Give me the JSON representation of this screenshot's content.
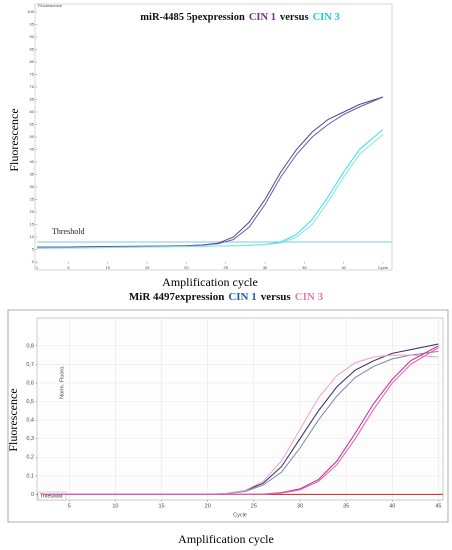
{
  "chart_data": [
    {
      "type": "line",
      "title": [
        {
          "text": "miR-4485 5pexpression",
          "color": "#111111"
        },
        {
          "text": "CIN 1",
          "color": "#7a2a8c"
        },
        {
          "text": "versus",
          "color": "#111111"
        },
        {
          "text": "CIN 3",
          "color": "#22c8e0"
        }
      ],
      "y_label": "Fluorescence",
      "x_label": "Amplification cycle",
      "y_inner_label": "Fluorescence",
      "x": [
        1,
        5,
        10,
        15,
        20,
        22,
        24,
        26,
        28,
        30,
        32,
        34,
        36,
        38,
        40,
        42,
        45
      ],
      "series": [
        {
          "color": "#5b3f8f",
          "values": [
            6,
            6,
            6.2,
            6.3,
            6.5,
            6.8,
            7.5,
            10,
            16,
            25,
            36,
            45,
            52,
            57,
            60,
            63,
            66
          ]
        },
        {
          "color": "#6e5aa8",
          "values": [
            6,
            6,
            6.2,
            6.3,
            6.5,
            6.8,
            7.3,
            9,
            14,
            23,
            34,
            43,
            50,
            55,
            59,
            62,
            66
          ]
        },
        {
          "color": "#3fdede",
          "values": [
            5.5,
            5.6,
            5.8,
            6,
            6.2,
            6.3,
            6.4,
            6.5,
            6.7,
            7,
            8,
            11,
            17,
            26,
            36,
            45,
            53
          ]
        },
        {
          "color": "#7ae8ea",
          "values": [
            5.5,
            5.6,
            5.8,
            6,
            6.2,
            6.3,
            6.4,
            6.5,
            6.6,
            6.9,
            7.6,
            10,
            15,
            24,
            34,
            43,
            51
          ]
        }
      ],
      "threshold": 8,
      "threshold_label": "Threshold",
      "threshold_color": "#7ec8e3",
      "xlim": [
        1,
        45
      ],
      "ylim": [
        0,
        100
      ],
      "xticks": [
        1,
        5,
        10,
        15,
        20,
        25,
        30,
        35,
        40,
        {
          "value": 45,
          "label": "Cycle"
        }
      ],
      "yticks": [
        0,
        5,
        10,
        15,
        20,
        25,
        30,
        35,
        40,
        45,
        50,
        55,
        60,
        65,
        70,
        75,
        80,
        85,
        90,
        95,
        100
      ],
      "grid": false
    },
    {
      "type": "line",
      "title": [
        {
          "text": "MiR 4497expression",
          "color": "#111111"
        },
        {
          "text": "CIN 1",
          "color": "#1a5fa8"
        },
        {
          "text": "versus",
          "color": "#111111"
        },
        {
          "text": "CIN 3",
          "color": "#e67aa8"
        }
      ],
      "y_label": "Fluorescence",
      "x_label": "Amplification cycle",
      "y_inner_label": "Norm. Fluoro.",
      "x_inner_label": "Cycle",
      "x": [
        2,
        5,
        10,
        15,
        20,
        22,
        24,
        26,
        28,
        30,
        32,
        34,
        36,
        38,
        40,
        42,
        45
      ],
      "series": [
        {
          "color": "#2a2a6a",
          "values": [
            0,
            0,
            0,
            0,
            0,
            0.005,
            0.02,
            0.06,
            0.15,
            0.3,
            0.45,
            0.58,
            0.67,
            0.72,
            0.76,
            0.78,
            0.81
          ]
        },
        {
          "color": "#7a8aa0",
          "values": [
            0,
            0,
            0,
            0,
            0,
            0.004,
            0.015,
            0.05,
            0.12,
            0.25,
            0.4,
            0.53,
            0.63,
            0.69,
            0.73,
            0.75,
            0.77
          ]
        },
        {
          "color": "#f0a0c8",
          "values": [
            0,
            0,
            0,
            0,
            0,
            0.005,
            0.02,
            0.07,
            0.18,
            0.35,
            0.52,
            0.64,
            0.71,
            0.74,
            0.75,
            0.75,
            0.74
          ]
        },
        {
          "color": "#d0208a",
          "values": [
            0,
            0,
            0,
            0,
            0,
            0,
            0,
            0.002,
            0.01,
            0.03,
            0.08,
            0.18,
            0.33,
            0.49,
            0.62,
            0.72,
            0.8
          ]
        },
        {
          "color": "#e060b0",
          "values": [
            0,
            0,
            0,
            0,
            0,
            0,
            0,
            0.002,
            0.007,
            0.025,
            0.07,
            0.16,
            0.3,
            0.46,
            0.6,
            0.7,
            0.79
          ]
        }
      ],
      "threshold": 0,
      "threshold_label": "Threshold",
      "threshold_color": "#d02020",
      "xlim": [
        1.5,
        45.5
      ],
      "ylim": [
        -0.03,
        0.95
      ],
      "xticks": [
        5,
        10,
        15,
        20,
        25,
        30,
        35,
        40,
        45
      ],
      "yticks": [
        0,
        {
          "value": 0.1,
          "label": "0,1"
        },
        {
          "value": 0.2,
          "label": "0,2"
        },
        {
          "value": 0.3,
          "label": "0,3"
        },
        {
          "value": 0.4,
          "label": "0,4"
        },
        {
          "value": 0.5,
          "label": "0,5"
        },
        {
          "value": 0.6,
          "label": "0,6"
        },
        {
          "value": 0.7,
          "label": "0,7"
        },
        {
          "value": 0.8,
          "label": "0,8"
        }
      ],
      "grid": true
    }
  ]
}
